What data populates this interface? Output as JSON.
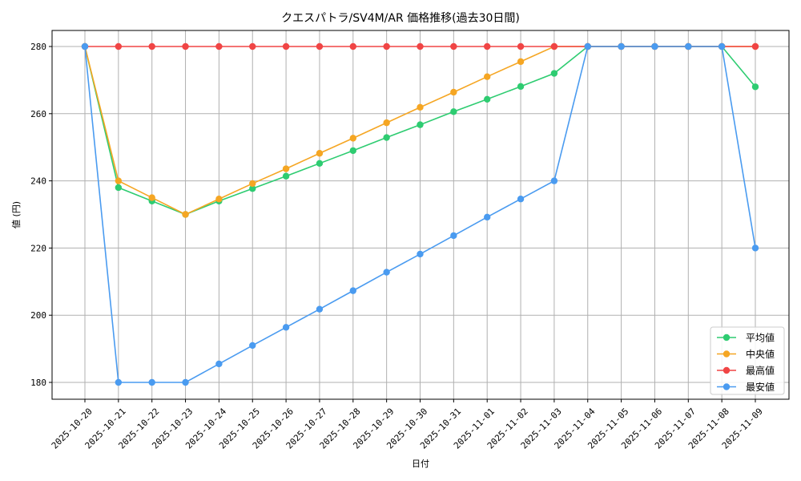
{
  "chart_data": {
    "type": "line",
    "title": "クエスパトラ/SV4M/AR 価格推移(過去30日間)",
    "xlabel": "日付",
    "ylabel": "値 (円)",
    "categories": [
      "2025-10-20",
      "2025-10-21",
      "2025-10-22",
      "2025-10-23",
      "2025-10-24",
      "2025-10-25",
      "2025-10-26",
      "2025-10-27",
      "2025-10-28",
      "2025-10-29",
      "2025-10-30",
      "2025-10-31",
      "2025-11-01",
      "2025-11-02",
      "2025-11-03",
      "2025-11-04",
      "2025-11-05",
      "2025-11-06",
      "2025-11-07",
      "2025-11-08",
      "2025-11-09"
    ],
    "yticks": [
      180,
      200,
      220,
      240,
      260,
      280
    ],
    "ylim": [
      175,
      285
    ],
    "grid": true,
    "legend_position": "bottom-right",
    "series": [
      {
        "name": "平均値",
        "color": "#2ecc71",
        "values": [
          280,
          238,
          234,
          230,
          234,
          237.7,
          241.4,
          245.2,
          249,
          252.9,
          256.7,
          260.6,
          264.3,
          268.1,
          272,
          280,
          280,
          280,
          280,
          280,
          268
        ]
      },
      {
        "name": "中央値",
        "color": "#f5a623",
        "values": [
          280,
          240,
          235,
          230,
          234.6,
          239.2,
          243.6,
          248.2,
          252.7,
          257.3,
          261.9,
          266.4,
          271,
          275.5,
          280,
          280,
          280,
          280,
          280,
          280,
          280
        ]
      },
      {
        "name": "最高値",
        "color": "#f04545",
        "values": [
          280,
          280,
          280,
          280,
          280,
          280,
          280,
          280,
          280,
          280,
          280,
          280,
          280,
          280,
          280,
          280,
          280,
          280,
          280,
          280,
          280
        ]
      },
      {
        "name": "最安値",
        "color": "#4a9bf0",
        "values": [
          280,
          180,
          180,
          180,
          185.5,
          191,
          196.4,
          201.8,
          207.3,
          212.8,
          218.2,
          223.7,
          229.2,
          234.6,
          240,
          280,
          280,
          280,
          280,
          280,
          220
        ]
      }
    ]
  }
}
